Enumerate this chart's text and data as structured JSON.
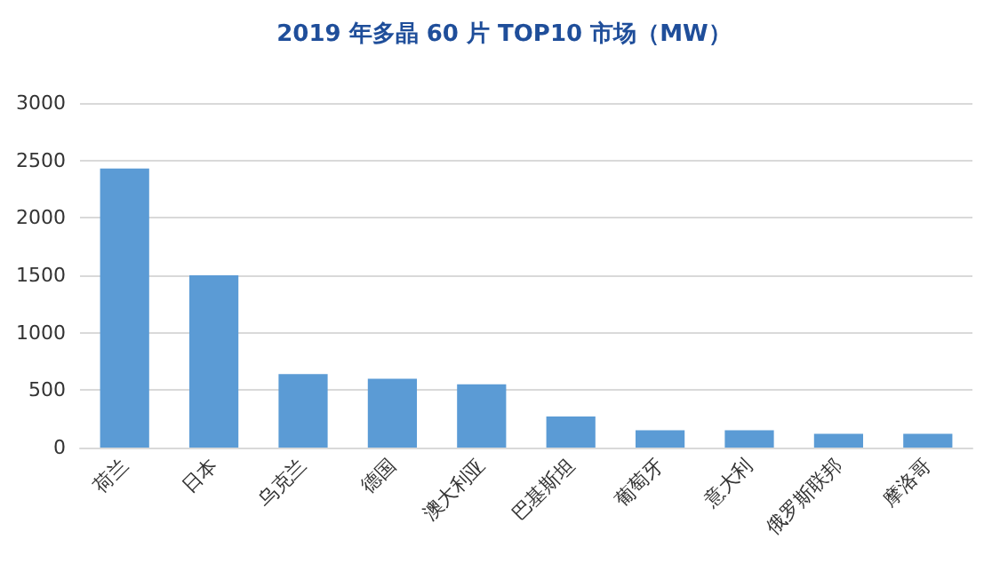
{
  "chart_data": {
    "type": "bar",
    "title": "2019 年多晶 60 片 TOP10 市场（MW）",
    "categories": [
      "荷兰",
      "日本",
      "乌克兰",
      "德国",
      "澳大利亚",
      "巴基斯坦",
      "葡萄牙",
      "意大利",
      "俄罗斯联邦",
      "摩洛哥"
    ],
    "values": [
      2430,
      1500,
      640,
      600,
      550,
      270,
      150,
      150,
      120,
      120
    ],
    "color": "#5b9bd5",
    "ylim": [
      0,
      3000
    ],
    "yticks": [
      0,
      500,
      1000,
      1500,
      2000,
      2500,
      3000
    ],
    "grid": "y"
  }
}
